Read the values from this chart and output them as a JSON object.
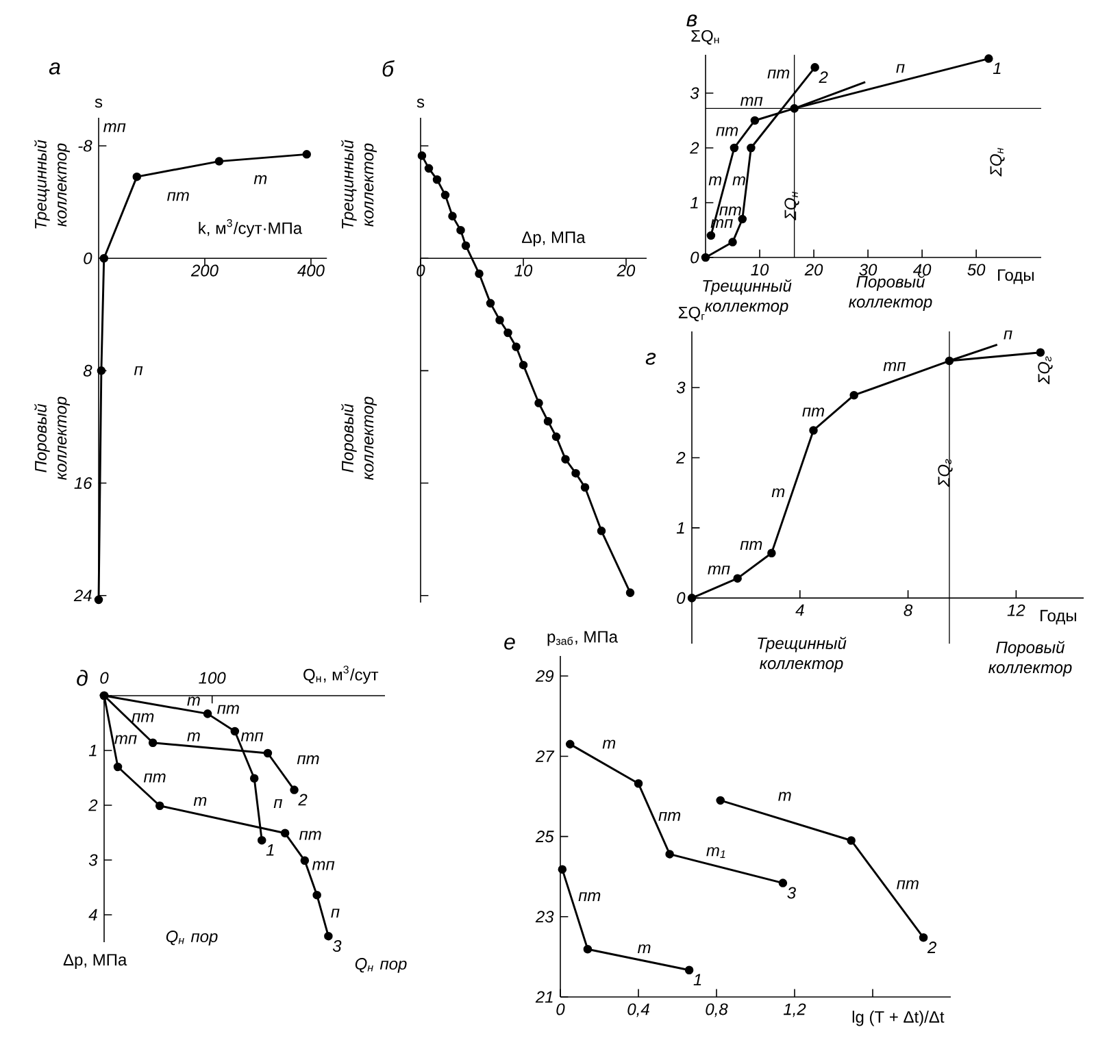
{
  "chart_data": [
    {
      "type": "line",
      "title": "а",
      "xlabel": "k, м$^{3}$/сут·МПа",
      "ylabel": "s",
      "xlim": [
        0,
        430
      ],
      "ylim": [
        24.5,
        -10
      ],
      "xticks": [
        200,
        400
      ],
      "yticks": [
        -8,
        0,
        8,
        16,
        24
      ],
      "marker": "circle",
      "series": [
        {
          "color": "#000000",
          "x": [
            392,
            227,
            72,
            10,
            5,
            0
          ],
          "values": [
            -7.4,
            -6.9,
            -5.8,
            0,
            8,
            24.3
          ]
        }
      ],
      "annotations": [
        "тп",
        "пт",
        "т",
        "п",
        "Трещинный коллектор",
        "Поровый коллектор"
      ]
    },
    {
      "type": "line",
      "title": "б",
      "xlabel": "Δp, МПа",
      "ylabel": "s",
      "xlim": [
        0,
        22
      ],
      "ylim": [
        24.5,
        -10
      ],
      "xticks": [
        0,
        10,
        20
      ],
      "yticks": [
        -8,
        0,
        8,
        16,
        24
      ],
      "tick_labels": "x",
      "marker": "circle",
      "series": [
        {
          "color": "#000000",
          "x": [
            0.13,
            0.8,
            1.6,
            2.4,
            3.1,
            3.9,
            4.4,
            5.7,
            6.8,
            7.7,
            8.5,
            9.3,
            10.0,
            11.5,
            12.4,
            13.2,
            14.1,
            15.1,
            16.0,
            17.6,
            20.4
          ],
          "values": [
            -7.3,
            -6.4,
            -5.6,
            -4.5,
            -3.0,
            -2.0,
            -0.9,
            1.1,
            3.2,
            4.4,
            5.3,
            6.3,
            7.6,
            10.3,
            11.6,
            12.7,
            14.3,
            15.3,
            16.3,
            19.4,
            23.8
          ]
        }
      ],
      "annotations": [
        "Трещинный коллектор",
        "Поровый коллектор"
      ]
    },
    {
      "type": "line",
      "title": "в",
      "xlabel": "Годы",
      "ylabel": "ΣQ$_{н}$",
      "xlim": [
        0,
        62
      ],
      "ylim": [
        0,
        3.7
      ],
      "xticks": [
        10,
        20,
        30,
        40,
        50
      ],
      "yticks": [
        0,
        1,
        2,
        3
      ],
      "marker": "circle",
      "series": [
        {
          "name": "1",
          "color": "#000000",
          "x": [
            1,
            5.3,
            9.1,
            16.4,
            52.3
          ],
          "values": [
            0.4,
            2.0,
            2.5,
            2.72,
            3.63
          ]
        },
        {
          "name": "2",
          "color": "#000000",
          "x": [
            0,
            5,
            6.8,
            8.4,
            20.2
          ],
          "values": [
            0,
            0.28,
            0.7,
            2.0,
            3.47
          ]
        },
        {
          "color": "#000000",
          "marker": "none",
          "x": [
            16.4,
            29.5
          ],
          "values": [
            2.72,
            3.2
          ]
        }
      ],
      "ref_lines": [
        {
          "axis": "x",
          "value": 16.4
        },
        {
          "axis": "y",
          "value": 2.72
        }
      ],
      "annotations": [
        "тп",
        "т",
        "пт",
        "тп",
        "пт",
        "п",
        "пт",
        "т",
        "ΣQ$_{н}$",
        "ΣQ$_{н}$",
        "Трещинный коллектор",
        "Поровый коллектор"
      ]
    },
    {
      "type": "line",
      "title": "г",
      "xlabel": "Годы",
      "ylabel": "ΣQ$_{г}$",
      "xlim": [
        0,
        14.5
      ],
      "ylim": [
        -0.65,
        3.8
      ],
      "xticks": [
        4,
        8,
        12
      ],
      "yticks": [
        0,
        1,
        2,
        3
      ],
      "marker": "circle",
      "series": [
        {
          "color": "#000000",
          "x": [
            0,
            1.69,
            2.95,
            4.5,
            6.0,
            9.53,
            12.9
          ],
          "values": [
            0,
            0.28,
            0.64,
            2.39,
            2.89,
            3.38,
            3.5
          ]
        },
        {
          "color": "#000000",
          "marker": "none",
          "x": [
            9.53,
            11.3
          ],
          "values": [
            3.38,
            3.61
          ]
        }
      ],
      "ref_lines": [
        {
          "axis": "x",
          "value": 9.53
        }
      ],
      "annotations": [
        "тп",
        "пт",
        "т",
        "пт",
        "тп",
        "п",
        "ΣQ$_{г}$",
        "ΣQ$_{г}$",
        "Трещинный коллектор",
        "Поровый коллектор"
      ]
    },
    {
      "type": "line",
      "title": "д",
      "xlabel": "Q$_{н}$, м$^{3}$/сут",
      "ylabel": "Δp, МПа",
      "xlim": [
        0,
        260
      ],
      "ylim": [
        4.5,
        0
      ],
      "xticks": [
        0,
        100
      ],
      "yticks": [
        {
          "value": 0,
          "label": null
        },
        1,
        2,
        3,
        4
      ],
      "marker": "circle",
      "series": [
        {
          "name": "1",
          "color": "#000000",
          "x": [
            0,
            95.8,
            121,
            139,
            146
          ],
          "values": [
            0,
            0.33,
            0.65,
            1.51,
            2.64
          ]
        },
        {
          "name": "2",
          "color": "#000000",
          "x": [
            0,
            45.1,
            151.5,
            176
          ],
          "values": [
            0,
            0.86,
            1.05,
            1.72
          ]
        },
        {
          "name": "3",
          "color": "#000000",
          "x": [
            0,
            12.7,
            51.5,
            167.5,
            185.7,
            197,
            207.6
          ],
          "values": [
            0,
            1.3,
            2.01,
            2.51,
            3.01,
            3.64,
            4.39
          ]
        }
      ],
      "annotations": [
        "т",
        "пт",
        "тп",
        "п",
        "пт",
        "т",
        "пт",
        "тп",
        "пт",
        "т",
        "пт",
        "тп",
        "п",
        "Q$_{н}$ пор",
        "Q$_{н}$ пор"
      ]
    },
    {
      "type": "line",
      "title": "е",
      "xlabel": "lg (T + Δt)/Δt",
      "ylabel": "p$_{заб}$, МПа",
      "xlim": [
        0,
        2.0
      ],
      "ylim": [
        21,
        29.5
      ],
      "xticks": [
        0,
        {
          "value": 0.4,
          "label": "0,4"
        },
        {
          "value": 0.8,
          "label": "0,8"
        },
        {
          "value": 1.2,
          "label": "1,2"
        },
        {
          "value": 1.6,
          "label": null
        }
      ],
      "yticks": [
        21,
        23,
        25,
        27,
        29
      ],
      "marker": "circle",
      "series": [
        {
          "name": "1",
          "color": "#000000",
          "x": [
            0.01,
            0.14,
            0.66
          ],
          "values": [
            24.18,
            22.19,
            21.67
          ]
        },
        {
          "name": "2",
          "color": "#000000",
          "x": [
            0.82,
            1.49,
            1.86
          ],
          "values": [
            25.9,
            24.9,
            22.48
          ]
        },
        {
          "name": "3",
          "color": "#000000",
          "x": [
            0.05,
            0.4,
            0.56,
            1.14
          ],
          "values": [
            27.3,
            26.32,
            24.56,
            23.84
          ]
        }
      ],
      "annotations": [
        "т",
        "пт",
        "т$_{1}$",
        "т",
        "пт",
        "пт",
        "т"
      ]
    }
  ]
}
